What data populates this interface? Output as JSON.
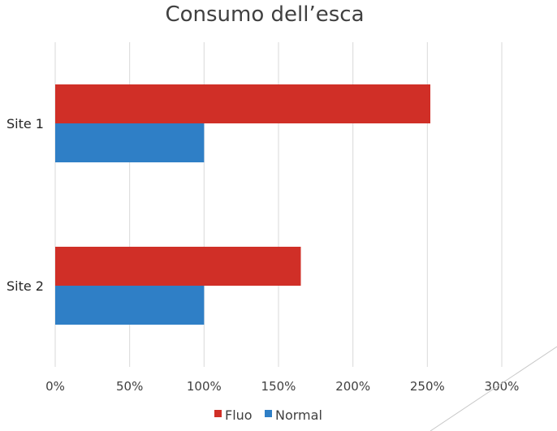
{
  "chart_data": {
    "type": "bar",
    "orientation": "horizontal",
    "title": "Consumo dell’esca",
    "categories": [
      "Site 1",
      "Site 2"
    ],
    "series": [
      {
        "name": "Fluo",
        "values": [
          252,
          165
        ],
        "color": "#D02F27"
      },
      {
        "name": "Normal",
        "values": [
          100,
          100
        ],
        "color": "#2F7FC6"
      }
    ],
    "xlim": [
      0,
      300
    ],
    "xticks": [
      0,
      50,
      100,
      150,
      200,
      250,
      300
    ],
    "xtick_labels": [
      "0%",
      "50%",
      "100%",
      "150%",
      "200%",
      "250%",
      "300%"
    ],
    "value_unit": "%",
    "grid": "vertical",
    "legend_position": "bottom"
  }
}
